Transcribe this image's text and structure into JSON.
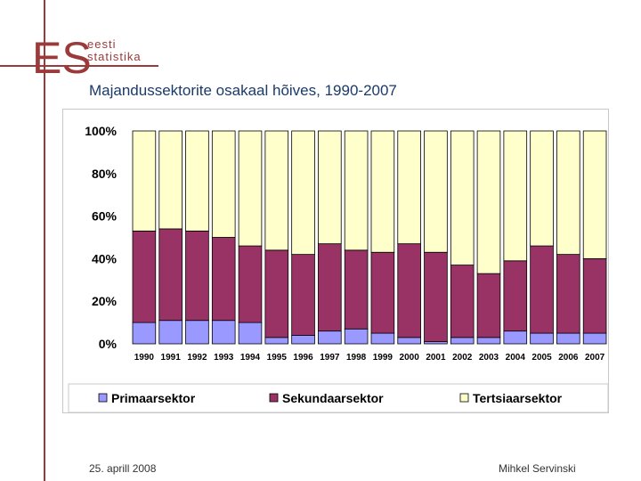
{
  "logo": {
    "mark": "ES",
    "line1": "eesti",
    "line2": "statistika"
  },
  "title": "Majandussektorite osakaal hõives, 1990-2007",
  "footer": {
    "date": "25. aprill 2008",
    "author": "Mihkel Servinski"
  },
  "colors": {
    "primary": "#9999ff",
    "secondary": "#993366",
    "tertiary": "#ffffcc",
    "brand": "#9b3a3a"
  },
  "chart_data": {
    "type": "bar",
    "stacked": "percent",
    "categories": [
      "1990",
      "1991",
      "1992",
      "1993",
      "1994",
      "1995",
      "1996",
      "1997",
      "1998",
      "1999",
      "2000",
      "2001",
      "2002",
      "2003",
      "2004",
      "2005",
      "2006",
      "2007"
    ],
    "series": [
      {
        "name": "Primaarsektor",
        "values": [
          10,
          11,
          11,
          11,
          10,
          3,
          4,
          6,
          7,
          5,
          3,
          1,
          3,
          3,
          6,
          5,
          5,
          5
        ]
      },
      {
        "name": "Sekundaarsektor",
        "values": [
          43,
          43,
          42,
          39,
          36,
          41,
          38,
          41,
          37,
          38,
          44,
          42,
          34,
          30,
          33,
          41,
          37,
          35
        ]
      },
      {
        "name": "Tertsiaarsektor",
        "values": [
          47,
          46,
          47,
          50,
          54,
          56,
          58,
          53,
          56,
          57,
          53,
          57,
          63,
          67,
          61,
          54,
          58,
          60
        ]
      }
    ],
    "yticks": [
      "0%",
      "20%",
      "40%",
      "60%",
      "80%",
      "100%"
    ],
    "ylim": [
      0,
      100
    ],
    "legend_position": "bottom",
    "grid": false
  }
}
